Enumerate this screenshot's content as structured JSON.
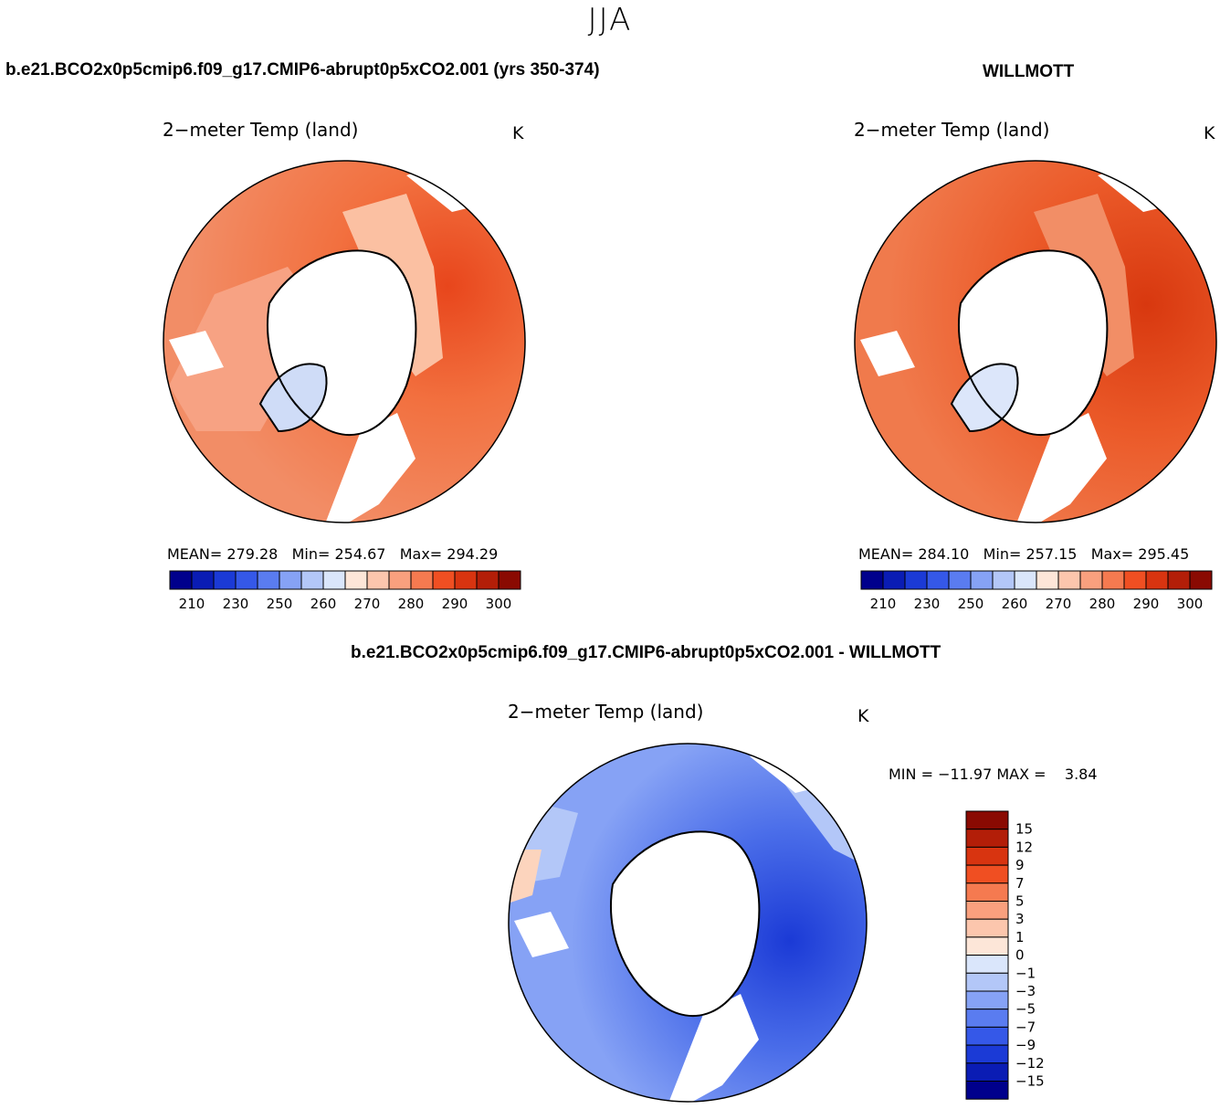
{
  "season": "JJA",
  "panels": [
    {
      "case_title": "b.e21.BCO2x0p5cmip6.f09_g17.CMIP6-abrupt0p5xCO2.001 (yrs 350-374)",
      "plot_title": "2−meter Temp (land)",
      "units": "K",
      "mean_label": "MEAN=",
      "mean_value": "279.28",
      "min_label": "Min=",
      "min_value": "254.67",
      "max_label": "Max=",
      "max_value": "294.29"
    },
    {
      "case_title": "WILLMOTT",
      "plot_title": "2−meter Temp (land)",
      "units": "K",
      "mean_label": "MEAN=",
      "mean_value": "284.10",
      "min_label": "Min=",
      "min_value": "257.15",
      "max_label": "Max=",
      "max_value": "295.45"
    }
  ],
  "diff_panel": {
    "case_title": "b.e21.BCO2x0p5cmip6.f09_g17.CMIP6-abrupt0p5xCO2.001 - WILLMOTT",
    "plot_title": "2−meter Temp (land)",
    "units": "K",
    "minmax_text": "MIN = −11.97 MAX =    3.84"
  },
  "colorbar_abs": {
    "colors": [
      "#00008c",
      "#0a1cb4",
      "#1b3ad6",
      "#3558e8",
      "#5a7cf0",
      "#86a2f5",
      "#b3c7f8",
      "#dae6fb",
      "#fde6d8",
      "#fcc6ad",
      "#f9a07e",
      "#f57a50",
      "#f04f22",
      "#d83410",
      "#b31e08",
      "#8a0a02"
    ],
    "tick_labels": [
      "210",
      "230",
      "250",
      "260",
      "270",
      "280",
      "290",
      "300"
    ]
  },
  "colorbar_diff": {
    "colors": [
      "#8a0a02",
      "#b31e08",
      "#d83410",
      "#f04f22",
      "#f57a50",
      "#f9a07e",
      "#fcc6ad",
      "#fde6d8",
      "#dae6fb",
      "#b3c7f8",
      "#86a2f5",
      "#5a7cf0",
      "#3558e8",
      "#1b3ad6",
      "#0a1cb4",
      "#00008c"
    ],
    "tick_labels": [
      "15",
      "12",
      "9",
      "7",
      "5",
      "3",
      "1",
      "0",
      "−1",
      "−3",
      "−5",
      "−7",
      "−9",
      "−12",
      "−15"
    ]
  }
}
